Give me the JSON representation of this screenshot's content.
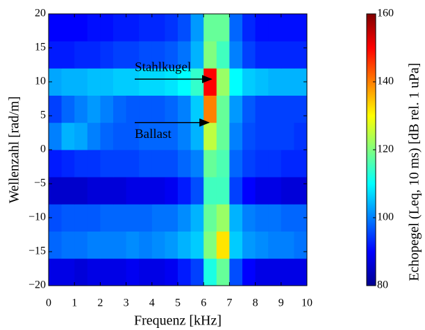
{
  "chart_data": {
    "type": "heatmap",
    "xlabel": "Frequenz [kHz]",
    "ylabel": "Wellenzahl [rad/m]",
    "colorbar_label": "Echopegel (Leq, 10 ms) [dB rel. 1 uPa]",
    "colormap": "jet",
    "xlim": [
      0,
      10
    ],
    "ylim": [
      -20,
      20
    ],
    "xticks": [
      0,
      1,
      2,
      3,
      4,
      5,
      6,
      7,
      8,
      9,
      10
    ],
    "yticks": [
      {
        "value": -20,
        "label": "−20"
      },
      {
        "value": -15,
        "label": "−15"
      },
      {
        "value": -10,
        "label": "−10"
      },
      {
        "value": -5,
        "label": "−5"
      },
      0,
      5,
      10,
      15,
      20
    ],
    "zlim": [
      80,
      160
    ],
    "zticks": [
      80,
      100,
      120,
      140,
      160
    ],
    "xbins": [
      0,
      0.5,
      1,
      1.5,
      2,
      2.5,
      3,
      3.5,
      4,
      4.5,
      5,
      5.5,
      6,
      6.5,
      7,
      7.5,
      8,
      8.5,
      9,
      9.5,
      10
    ],
    "ybins": [
      -20,
      -16,
      -12,
      -8,
      -4,
      0,
      4,
      8,
      12,
      16,
      20
    ],
    "z": [
      [
        88,
        88,
        87,
        88,
        88,
        88,
        89,
        88,
        88,
        89,
        92,
        95,
        112,
        118,
        96,
        90,
        88,
        88,
        88,
        88
      ],
      [
        98,
        99,
        99,
        100,
        100,
        100,
        101,
        100,
        101,
        102,
        104,
        106,
        120,
        132,
        106,
        102,
        101,
        100,
        100,
        99
      ],
      [
        96,
        97,
        97,
        97,
        98,
        98,
        98,
        98,
        99,
        99,
        101,
        104,
        118,
        122,
        104,
        100,
        99,
        99,
        98,
        98
      ],
      [
        86,
        86,
        86,
        87,
        87,
        87,
        88,
        88,
        88,
        89,
        92,
        96,
        115,
        115,
        95,
        90,
        88,
        88,
        87,
        87
      ],
      [
        92,
        93,
        94,
        94,
        95,
        95,
        95,
        96,
        96,
        96,
        98,
        100,
        118,
        116,
        98,
        95,
        94,
        94,
        93,
        93
      ],
      [
        100,
        104,
        103,
        100,
        98,
        97,
        97,
        98,
        98,
        98,
        100,
        104,
        125,
        118,
        100,
        96,
        95,
        95,
        95,
        94
      ],
      [
        95,
        98,
        100,
        102,
        100,
        98,
        97,
        97,
        97,
        98,
        100,
        106,
        140,
        118,
        102,
        97,
        95,
        95,
        95,
        95
      ],
      [
        103,
        104,
        104,
        105,
        105,
        106,
        106,
        107,
        107,
        108,
        110,
        114,
        150,
        122,
        110,
        106,
        105,
        104,
        104,
        104
      ],
      [
        92,
        92,
        93,
        93,
        94,
        95,
        95,
        96,
        96,
        97,
        99,
        104,
        120,
        115,
        100,
        95,
        93,
        93,
        93,
        93
      ],
      [
        90,
        90,
        90,
        91,
        91,
        92,
        92,
        93,
        93,
        94,
        96,
        102,
        118,
        118,
        98,
        93,
        91,
        91,
        91,
        91
      ]
    ],
    "annotations": [
      {
        "text": "Stahlkugel",
        "x": 6.3,
        "y": 10.4
      },
      {
        "text": "Ballast",
        "x": 6.2,
        "y": 4
      }
    ]
  }
}
